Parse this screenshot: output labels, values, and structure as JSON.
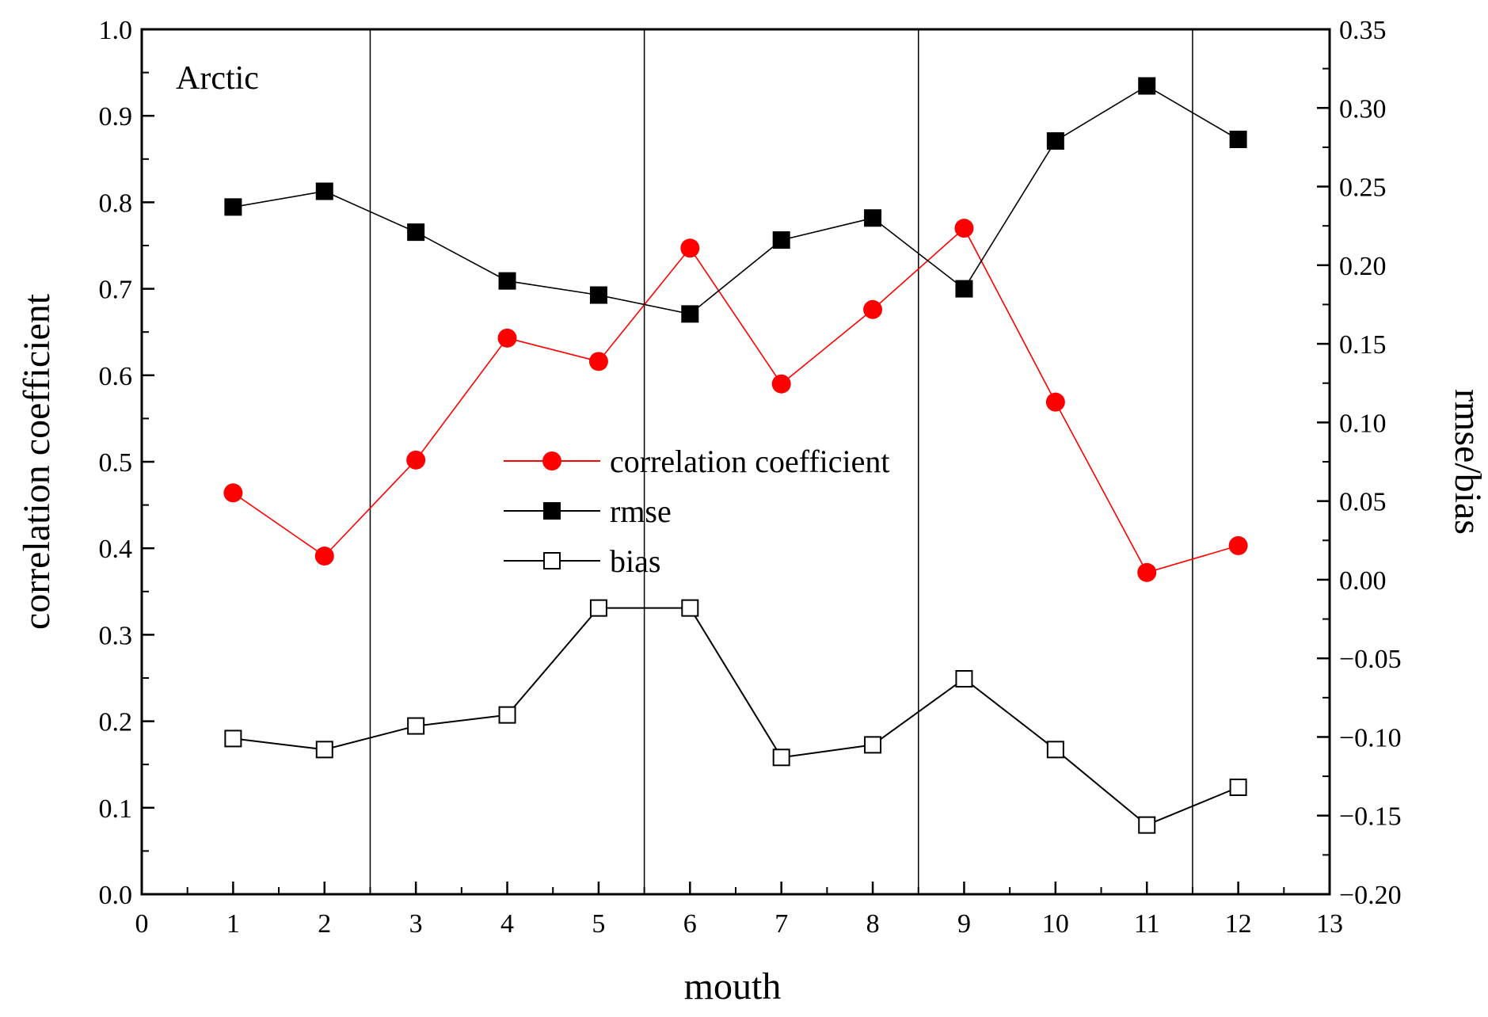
{
  "chart_data": {
    "type": "line",
    "panel_label": "Arctic",
    "xlabel": "mouth",
    "ylabel": "correlation coefficient",
    "y2label": "rmse/bias",
    "xlim": [
      0,
      13
    ],
    "ylim": [
      0,
      1.0
    ],
    "y2lim": [
      -0.2,
      0.35
    ],
    "xticks": [
      "0",
      "1",
      "2",
      "3",
      "4",
      "5",
      "6",
      "7",
      "8",
      "9",
      "10",
      "11",
      "12",
      "13"
    ],
    "yticks": [
      "0.0",
      "0.1",
      "0.2",
      "0.3",
      "0.4",
      "0.5",
      "0.6",
      "0.7",
      "0.8",
      "0.9",
      "1.0"
    ],
    "y2ticks": [
      "−0.20",
      "−0.15",
      "−0.10",
      "−0.05",
      "0.00",
      "0.05",
      "0.10",
      "0.15",
      "0.20",
      "0.25",
      "0.30",
      "0.35"
    ],
    "season_dividers": [
      2.5,
      5.5,
      8.5,
      11.5
    ],
    "x": [
      1,
      2,
      3,
      4,
      5,
      6,
      7,
      8,
      9,
      10,
      11,
      12
    ],
    "series": [
      {
        "name": "correlation coefficient",
        "axis": "left",
        "color": "#ff0000",
        "marker": "filled-circle",
        "values": [
          0.464,
          0.391,
          0.502,
          0.643,
          0.616,
          0.747,
          0.59,
          0.676,
          0.77,
          0.569,
          0.372,
          0.403
        ]
      },
      {
        "name": "rmse",
        "axis": "right",
        "color": "#000000",
        "marker": "filled-square",
        "values": [
          0.237,
          0.247,
          0.221,
          0.19,
          0.181,
          0.169,
          0.216,
          0.23,
          0.185,
          0.279,
          0.314,
          0.28
        ]
      },
      {
        "name": "bias",
        "axis": "right",
        "color": "#000000",
        "marker": "open-square",
        "values": [
          -0.101,
          -0.108,
          -0.093,
          -0.086,
          -0.018,
          -0.018,
          -0.113,
          -0.105,
          -0.063,
          -0.108,
          -0.156,
          -0.132
        ]
      }
    ],
    "legend_position": "center"
  }
}
